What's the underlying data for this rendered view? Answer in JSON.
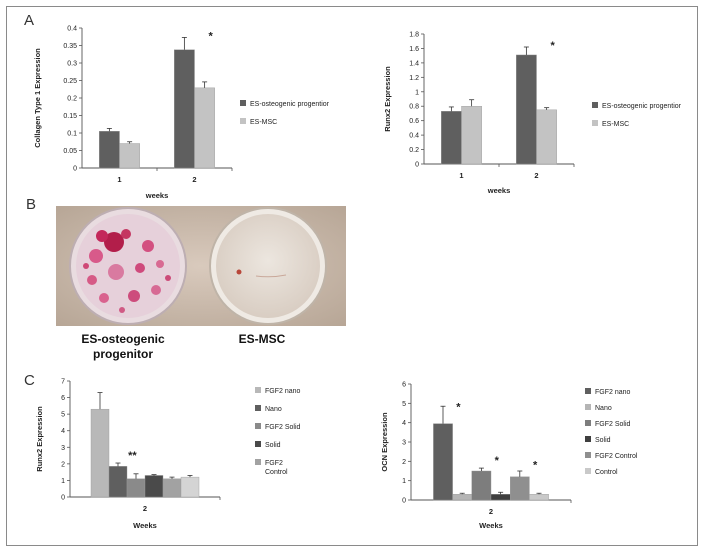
{
  "panels": {
    "a": "A",
    "b": "B",
    "c": "C"
  },
  "photo": {
    "label_left": "ES-osteogenic\nprogenitor",
    "label_right": "ES-MSC"
  },
  "colors": {
    "dark": "#5f5f5f",
    "light": "#c3c3c3",
    "mid": "#888888",
    "pale": "#b0b0b0",
    "pink_dish": "#d4487a",
    "bg_photo": "#c8b8aa"
  },
  "chart_data": [
    {
      "type": "bar",
      "categories": [
        "1",
        "2"
      ],
      "xlabel": "weeks",
      "ylabel": "Collagen Type 1 Expression",
      "ylim": [
        0,
        0.4
      ],
      "yticks": [
        "0",
        "0.05",
        "0.1",
        "0.15",
        "0.2",
        "0.25",
        "0.3",
        "0.35",
        "0.4"
      ],
      "series": [
        {
          "name": "ES-osteogenic progentior",
          "color": "#5f5f5f",
          "values": [
            0.105,
            0.338
          ],
          "errors": [
            0.008,
            0.035
          ]
        },
        {
          "name": "ES-MSC",
          "color": "#c3c3c3",
          "values": [
            0.07,
            0.229
          ],
          "errors": [
            0.005,
            0.017
          ]
        }
      ],
      "annotations": [
        {
          "text": "*",
          "category": "2"
        }
      ],
      "legend": "right"
    },
    {
      "type": "bar",
      "categories": [
        "1",
        "2"
      ],
      "xlabel": "weeks",
      "ylabel": "Runx2 Expression",
      "ylim": [
        0,
        1.8
      ],
      "yticks": [
        "0",
        "0.2",
        "0.4",
        "0.6",
        "0.8",
        "1",
        "1.2",
        "1.4",
        "1.6",
        "1.8"
      ],
      "series": [
        {
          "name": "ES-osteogenic progentior",
          "color": "#5f5f5f",
          "values": [
            0.73,
            1.51
          ],
          "errors": [
            0.06,
            0.11
          ]
        },
        {
          "name": "ES-MSC",
          "color": "#c3c3c3",
          "values": [
            0.8,
            0.75
          ],
          "errors": [
            0.09,
            0.03
          ]
        }
      ],
      "annotations": [
        {
          "text": "*",
          "category": "2"
        }
      ],
      "legend": "right"
    },
    {
      "type": "bar",
      "categories": [
        "2"
      ],
      "xlabel": "Weeks",
      "ylabel": "Runx2 Expression",
      "ylim": [
        0,
        7
      ],
      "yticks": [
        "0",
        "1",
        "2",
        "3",
        "4",
        "5",
        "6",
        "7"
      ],
      "series": [
        {
          "name": "FGF2 nano",
          "color": "#b8b8b8",
          "values": [
            5.3
          ],
          "errors": [
            1.0
          ]
        },
        {
          "name": "Nano",
          "color": "#5f5f5f",
          "values": [
            1.85
          ],
          "errors": [
            0.2
          ]
        },
        {
          "name": "FGF2 Solid",
          "color": "#8a8a8a",
          "values": [
            1.1
          ],
          "errors": [
            0.3
          ]
        },
        {
          "name": "Solid",
          "color": "#4a4a4a",
          "values": [
            1.3
          ],
          "errors": [
            0.05
          ]
        },
        {
          "name": "FGF2\nControl",
          "color": "#a2a2a2",
          "values": [
            1.1
          ],
          "errors": [
            0.1
          ]
        },
        {
          "name": "",
          "color": "#d4d4d4",
          "values": [
            1.2
          ],
          "errors": [
            0.1
          ]
        }
      ],
      "annotations": [
        {
          "text": "**",
          "series": 1
        }
      ],
      "legend": "right"
    },
    {
      "type": "bar",
      "categories": [
        "2"
      ],
      "xlabel": "Weeks",
      "ylabel": "OCN Expression",
      "ylim": [
        0,
        6
      ],
      "yticks": [
        "0",
        "1",
        "2",
        "3",
        "4",
        "5",
        "6"
      ],
      "series": [
        {
          "name": "FGF2 nano",
          "color": "#5f5f5f",
          "values": [
            3.95
          ],
          "errors": [
            0.9
          ]
        },
        {
          "name": "Nano",
          "color": "#b5b5b5",
          "values": [
            0.3
          ],
          "errors": [
            0.05
          ]
        },
        {
          "name": "FGF2 Solid",
          "color": "#7d7d7d",
          "values": [
            1.5
          ],
          "errors": [
            0.15
          ]
        },
        {
          "name": "Solid",
          "color": "#3f3f3f",
          "values": [
            0.3
          ],
          "errors": [
            0.1
          ]
        },
        {
          "name": "FGF2 Control",
          "color": "#8f8f8f",
          "values": [
            1.2
          ],
          "errors": [
            0.3
          ]
        },
        {
          "name": "Control",
          "color": "#c9c9c9",
          "values": [
            0.3
          ],
          "errors": [
            0.05
          ]
        }
      ],
      "annotations": [
        {
          "text": "*",
          "series": 0
        },
        {
          "text": "*",
          "series": 2
        },
        {
          "text": "*",
          "series": 4
        }
      ],
      "legend": "right"
    }
  ]
}
